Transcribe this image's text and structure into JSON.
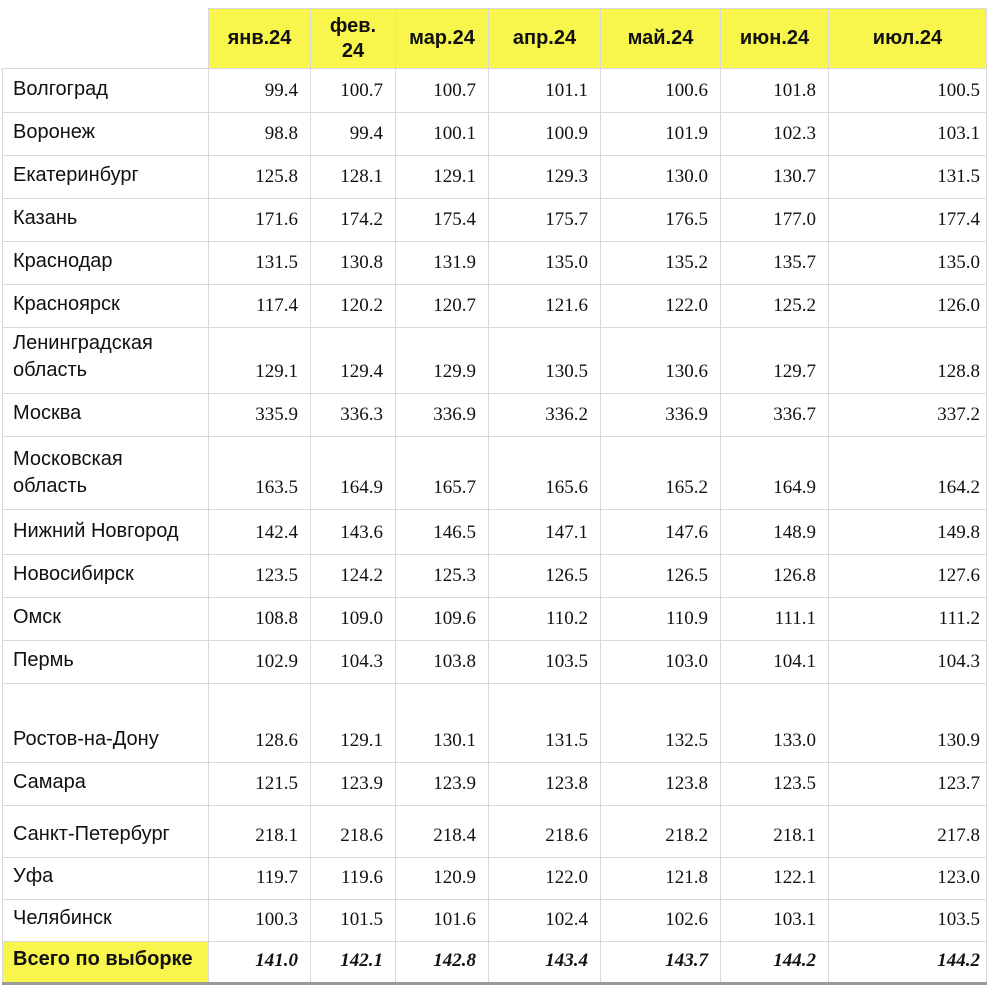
{
  "chart_data": {
    "type": "table",
    "title": "",
    "corner_label": "",
    "columns": [
      "янв.24",
      "фев.24",
      "мар.24",
      "апр.24",
      "май.24",
      "июн.24",
      "июл.24"
    ],
    "rows": [
      {
        "label": "Волгоград",
        "values": [
          "99.4",
          "100.7",
          "100.7",
          "101.1",
          "100.6",
          "101.8",
          "100.5"
        ]
      },
      {
        "label": "Воронеж",
        "values": [
          "98.8",
          "99.4",
          "100.1",
          "100.9",
          "101.9",
          "102.3",
          "103.1"
        ]
      },
      {
        "label": "Екатеринбург",
        "values": [
          "125.8",
          "128.1",
          "129.1",
          "129.3",
          "130.0",
          "130.7",
          "131.5"
        ]
      },
      {
        "label": "Казань",
        "values": [
          "171.6",
          "174.2",
          "175.4",
          "175.7",
          "176.5",
          "177.0",
          "177.4"
        ]
      },
      {
        "label": "Краснодар",
        "values": [
          "131.5",
          "130.8",
          "131.9",
          "135.0",
          "135.2",
          "135.7",
          "135.0"
        ]
      },
      {
        "label": "Красноярск",
        "values": [
          "117.4",
          "120.2",
          "120.7",
          "121.6",
          "122.0",
          "125.2",
          "126.0"
        ]
      },
      {
        "label": "Ленинградская область",
        "values": [
          "129.1",
          "129.4",
          "129.9",
          "130.5",
          "130.6",
          "129.7",
          "128.8"
        ]
      },
      {
        "label": "Москва",
        "values": [
          "335.9",
          "336.3",
          "336.9",
          "336.2",
          "336.9",
          "336.7",
          "337.2"
        ]
      },
      {
        "label": "Московская область",
        "values": [
          "163.5",
          "164.9",
          "165.7",
          "165.6",
          "165.2",
          "164.9",
          "164.2"
        ]
      },
      {
        "label": "Нижний Новгород",
        "values": [
          "142.4",
          "143.6",
          "146.5",
          "147.1",
          "147.6",
          "148.9",
          "149.8"
        ]
      },
      {
        "label": "Новосибирск",
        "values": [
          "123.5",
          "124.2",
          "125.3",
          "126.5",
          "126.5",
          "126.8",
          "127.6"
        ]
      },
      {
        "label": "Омск",
        "values": [
          "108.8",
          "109.0",
          "109.6",
          "110.2",
          "110.9",
          "111.1",
          "111.2"
        ]
      },
      {
        "label": "Пермь",
        "values": [
          "102.9",
          "104.3",
          "103.8",
          "103.5",
          "103.0",
          "104.1",
          "104.3"
        ]
      },
      {
        "label": "Ростов-на-Дону",
        "values": [
          "128.6",
          "129.1",
          "130.1",
          "131.5",
          "132.5",
          "133.0",
          "130.9"
        ]
      },
      {
        "label": "Самара",
        "values": [
          "121.5",
          "123.9",
          "123.9",
          "123.8",
          "123.8",
          "123.5",
          "123.7"
        ]
      },
      {
        "label": "Санкт-Петербург",
        "values": [
          "218.1",
          "218.6",
          "218.4",
          "218.6",
          "218.2",
          "218.1",
          "217.8"
        ]
      },
      {
        "label": "Уфа",
        "values": [
          "119.7",
          "119.6",
          "120.9",
          "122.0",
          "121.8",
          "122.1",
          "123.0"
        ]
      },
      {
        "label": "Челябинск",
        "values": [
          "100.3",
          "101.5",
          "101.6",
          "102.4",
          "102.6",
          "103.1",
          "103.5"
        ]
      }
    ],
    "total_row": {
      "label": "Всего по выборке",
      "values": [
        "141.0",
        "142.1",
        "142.8",
        "143.4",
        "143.7",
        "144.2",
        "144.2"
      ]
    },
    "layout_hints": {
      "header_row": "yellow",
      "total_row_label": "yellow",
      "grid": "on",
      "thick_bottom_rule": true
    }
  },
  "colors": {
    "header_bg": "#f8f64d",
    "grid_border": "#d9d9d9",
    "bottom_bar": "#9a9a9a",
    "text": "#111111"
  }
}
